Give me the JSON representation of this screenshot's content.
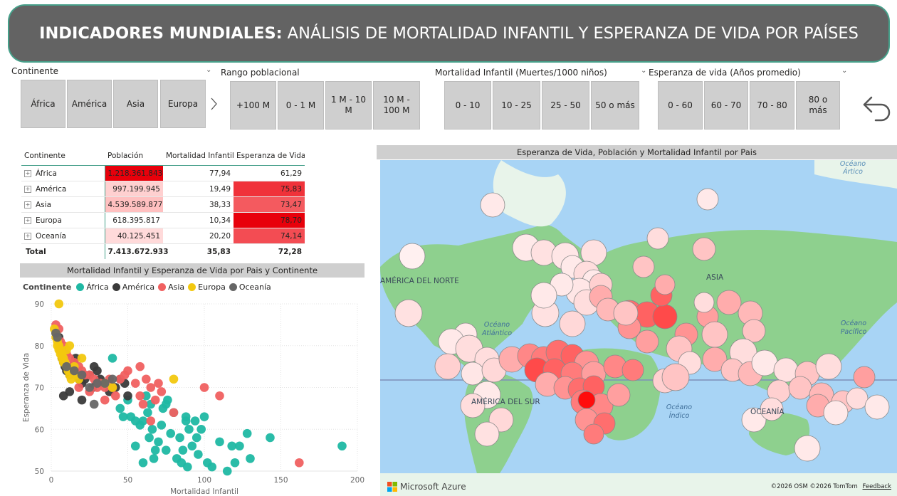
{
  "header": {
    "title_bold": "INDICADORES MUNDIALES:",
    "title_rest": "ANÁLISIS DE MORTALIDAD INFANTIL Y ESPERANZA DE VIDA POR PAÍSES"
  },
  "slicers": {
    "continente": {
      "label": "Continente",
      "options": [
        "África",
        "América",
        "Asia",
        "Europa"
      ]
    },
    "rango": {
      "label": "Rango poblacional",
      "options": [
        "+100 M",
        "0 - 1 M",
        "1 M - 10 M",
        "10 M - 100 M"
      ]
    },
    "mortalidad": {
      "label": "Mortalidad Infantil (Muertes/1000 niños)",
      "options": [
        "0 - 10",
        "10 - 25",
        "25 - 50",
        "50 o más"
      ]
    },
    "esperanza": {
      "label": "Esperanza de vida (Años promedio)",
      "options": [
        "0 - 60",
        "60 - 70",
        "70 - 80",
        "80 o más"
      ]
    }
  },
  "matrix": {
    "headers": [
      "Continente",
      "Población",
      "Mortalidad Infantil",
      "Esperanza de Vida"
    ],
    "rows": [
      {
        "name": "África",
        "pob": "1.218.361.843",
        "mort": "77,94",
        "esp": "61,29",
        "pob_color": "#e8000b",
        "esp_color": "#ffffff"
      },
      {
        "name": "América",
        "pob": "997.199.945",
        "mort": "19,49",
        "esp": "75,83",
        "pob_color": "#ffd0d0",
        "esp_color": "#f0323a"
      },
      {
        "name": "Asia",
        "pob": "4.539.589.877",
        "mort": "38,33",
        "esp": "73,47",
        "pob_color": "#ffc0c0",
        "esp_color": "#f45a5f"
      },
      {
        "name": "Europa",
        "pob": "618.395.817",
        "mort": "10,34",
        "esp": "78,70",
        "pob_color": "#ffffff",
        "esp_color": "#e8000b"
      },
      {
        "name": "Oceanía",
        "pob": "40.125.451",
        "mort": "20,20",
        "esp": "74,14",
        "pob_color": "#ffdada",
        "esp_color": "#f34c53"
      }
    ],
    "total": {
      "name": "Total",
      "pob": "7.413.672.933",
      "mort": "35,83",
      "esp": "72,28"
    }
  },
  "scatter": {
    "title": "Mortalidad Infantil y Esperanza de Vida por Pais y Continente",
    "legend_title": "Continente",
    "xlabel": "Mortalidad Infantil",
    "ylabel": "Esperanza de Vida"
  },
  "chart_data": {
    "type": "scatter",
    "title": "Mortalidad Infantil y Esperanza de Vida por Pais y Continente",
    "xlabel": "Mortalidad Infantil",
    "ylabel": "Esperanza de Vida",
    "xlim": [
      0,
      200
    ],
    "ylim": [
      50,
      90
    ],
    "xticks": [
      0,
      50,
      100,
      150,
      200
    ],
    "yticks": [
      50,
      60,
      70,
      80,
      90
    ],
    "series": [
      {
        "name": "África",
        "color": "#1fb8a3",
        "points": [
          [
            40,
            77
          ],
          [
            45,
            65
          ],
          [
            50,
            67
          ],
          [
            52,
            63
          ],
          [
            55,
            56
          ],
          [
            58,
            61
          ],
          [
            60,
            52
          ],
          [
            62,
            68
          ],
          [
            63,
            64
          ],
          [
            64,
            58
          ],
          [
            65,
            66
          ],
          [
            66,
            60
          ],
          [
            67,
            53
          ],
          [
            68,
            55
          ],
          [
            70,
            57
          ],
          [
            72,
            61
          ],
          [
            73,
            65
          ],
          [
            75,
            66
          ],
          [
            78,
            59
          ],
          [
            80,
            64
          ],
          [
            82,
            53
          ],
          [
            84,
            58
          ],
          [
            85,
            52
          ],
          [
            86,
            55
          ],
          [
            88,
            62
          ],
          [
            89,
            51
          ],
          [
            90,
            60
          ],
          [
            92,
            56
          ],
          [
            94,
            62
          ],
          [
            95,
            58
          ],
          [
            96,
            54
          ],
          [
            98,
            60
          ],
          [
            100,
            63
          ],
          [
            102,
            52
          ],
          [
            105,
            51
          ],
          [
            110,
            57
          ],
          [
            115,
            50
          ],
          [
            118,
            56
          ],
          [
            120,
            52
          ],
          [
            123,
            56
          ],
          [
            128,
            59
          ],
          [
            130,
            53
          ],
          [
            143,
            58
          ],
          [
            190,
            56
          ],
          [
            60,
            62
          ],
          [
            55,
            62
          ],
          [
            47,
            63
          ],
          [
            76,
            67
          ],
          [
            88,
            63
          ],
          [
            75,
            55
          ]
        ]
      },
      {
        "name": "América",
        "color": "#3a3a3a",
        "points": [
          [
            3,
            83
          ],
          [
            5,
            82
          ],
          [
            6,
            79
          ],
          [
            7,
            77
          ],
          [
            8,
            76
          ],
          [
            9,
            75
          ],
          [
            10,
            74
          ],
          [
            12,
            73
          ],
          [
            14,
            75
          ],
          [
            15,
            74
          ],
          [
            16,
            77
          ],
          [
            18,
            72
          ],
          [
            20,
            71
          ],
          [
            22,
            72
          ],
          [
            25,
            73
          ],
          [
            28,
            75
          ],
          [
            30,
            74
          ],
          [
            32,
            72
          ],
          [
            35,
            71
          ],
          [
            8,
            68
          ],
          [
            20,
            67
          ],
          [
            45,
            72
          ],
          [
            48,
            71
          ],
          [
            50,
            68
          ],
          [
            42,
            70
          ],
          [
            38,
            69
          ],
          [
            27,
            70
          ],
          [
            12,
            69
          ]
        ]
      },
      {
        "name": "Asia",
        "color": "#f06060",
        "points": [
          [
            3,
            85
          ],
          [
            5,
            84
          ],
          [
            6,
            81
          ],
          [
            8,
            80
          ],
          [
            10,
            78
          ],
          [
            12,
            77
          ],
          [
            15,
            76
          ],
          [
            18,
            75
          ],
          [
            20,
            74
          ],
          [
            22,
            73
          ],
          [
            25,
            73
          ],
          [
            28,
            72
          ],
          [
            30,
            70
          ],
          [
            32,
            71
          ],
          [
            35,
            70
          ],
          [
            38,
            72
          ],
          [
            40,
            70
          ],
          [
            42,
            68
          ],
          [
            45,
            72
          ],
          [
            48,
            73
          ],
          [
            50,
            74
          ],
          [
            55,
            71
          ],
          [
            58,
            68
          ],
          [
            60,
            66
          ],
          [
            62,
            72
          ],
          [
            65,
            70
          ],
          [
            68,
            67
          ],
          [
            70,
            71
          ],
          [
            72,
            69
          ],
          [
            80,
            64
          ],
          [
            100,
            70
          ],
          [
            110,
            68
          ],
          [
            162,
            52
          ],
          [
            25,
            69
          ],
          [
            18,
            70
          ],
          [
            35,
            67
          ],
          [
            58,
            75
          ],
          [
            65,
            62
          ]
        ]
      },
      {
        "name": "Europa",
        "color": "#f2c80f",
        "points": [
          [
            2,
            84
          ],
          [
            3,
            83
          ],
          [
            3,
            82
          ],
          [
            4,
            81
          ],
          [
            4,
            80
          ],
          [
            5,
            80
          ],
          [
            5,
            79
          ],
          [
            6,
            79
          ],
          [
            6,
            78
          ],
          [
            7,
            78
          ],
          [
            7,
            77
          ],
          [
            8,
            77
          ],
          [
            8,
            76
          ],
          [
            9,
            76
          ],
          [
            10,
            75
          ],
          [
            11,
            74
          ],
          [
            12,
            73
          ],
          [
            13,
            72
          ],
          [
            14,
            74
          ],
          [
            16,
            73
          ],
          [
            18,
            72
          ],
          [
            15,
            75
          ],
          [
            10,
            79
          ],
          [
            12,
            80
          ],
          [
            35,
            71
          ],
          [
            40,
            70
          ],
          [
            80,
            72
          ],
          [
            5,
            90
          ],
          [
            20,
            77
          ]
        ]
      },
      {
        "name": "Oceanía",
        "color": "#666666",
        "points": [
          [
            3,
            83
          ],
          [
            4,
            82
          ],
          [
            10,
            75
          ],
          [
            15,
            74
          ],
          [
            20,
            73
          ],
          [
            25,
            70
          ],
          [
            30,
            71
          ],
          [
            35,
            71
          ],
          [
            40,
            72
          ],
          [
            28,
            66
          ]
        ]
      }
    ]
  },
  "map": {
    "title": "Esperanza de Vida, Población y Mortalidad Infantil por Pais",
    "labels": {
      "oceano_artico": "Océano Ártico",
      "america_norte": "AMÉRICA DEL NORTE",
      "asia": "ASIA",
      "oceano_atlantico": "Océano Atlántico",
      "oceano_pacifico": "Océano Pacífico",
      "america_sur": "AMÉRICA DEL SUR",
      "oceano_indico": "Océano Índico",
      "oceania": "OCEANÍA"
    },
    "footer": {
      "brand": "Microsoft Azure",
      "credits": "©2026 OSM  ©2026 TomTom",
      "feedback": "Feedback"
    },
    "colors": {
      "water": "#a8d4f5",
      "land": "#8ed08e",
      "ice": "#e8f4ea"
    }
  }
}
